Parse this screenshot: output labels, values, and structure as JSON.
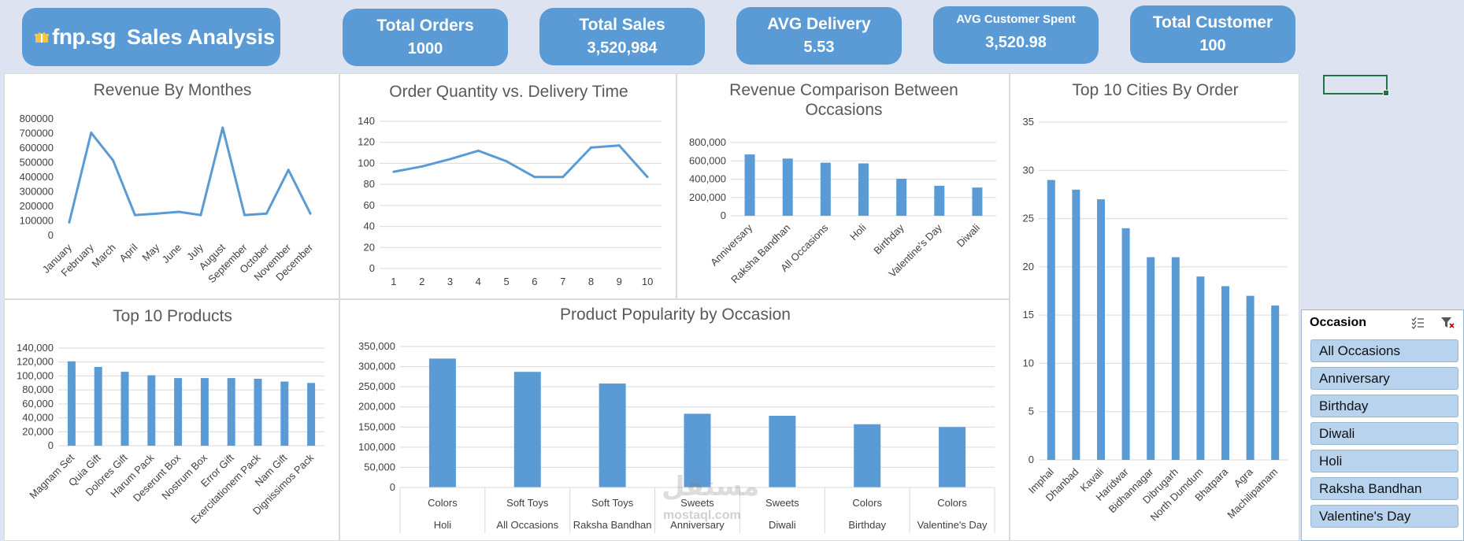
{
  "brand": {
    "logo": "fnp.sg",
    "title": "Sales Analysis"
  },
  "kpis": [
    {
      "label": "Total Orders",
      "value": "1000"
    },
    {
      "label": "Total Sales",
      "value": "3,520,984"
    },
    {
      "label": "AVG Delivery",
      "value": "5.53"
    },
    {
      "label": "AVG Customer Spent",
      "value": "3,520.98"
    },
    {
      "label": "Total Customer",
      "value": "100"
    }
  ],
  "colors": {
    "accent": "#5b9bd5",
    "background": "#dde3f1",
    "slicer_item": "#b8d3ee"
  },
  "slicer": {
    "title": "Occasion",
    "items": [
      "All Occasions",
      "Anniversary",
      "Birthday",
      "Diwali",
      "Holi",
      "Raksha Bandhan",
      "Valentine's Day"
    ]
  },
  "watermark": {
    "arabic": "مستقل",
    "latin": "mostaql.com"
  },
  "chart_data": [
    {
      "id": "revenue_months",
      "type": "line",
      "title": "Revenue By Monthes",
      "categories": [
        "January",
        "February",
        "March",
        "April",
        "May",
        "June",
        "July",
        "August",
        "September",
        "October",
        "November",
        "December"
      ],
      "values": [
        90000,
        705000,
        515000,
        140000,
        150000,
        162000,
        140000,
        740000,
        140000,
        150000,
        450000,
        150000
      ],
      "yticks": [
        "0",
        "100000",
        "200000",
        "300000",
        "400000",
        "500000",
        "600000",
        "700000",
        "800000"
      ],
      "ylim": [
        0,
        800000
      ]
    },
    {
      "id": "qty_delivery",
      "type": "line",
      "title": "Order Quantity vs. Delivery Time",
      "categories": [
        "1",
        "2",
        "3",
        "4",
        "5",
        "6",
        "7",
        "8",
        "9",
        "10"
      ],
      "values": [
        92,
        97,
        104,
        112,
        102,
        87,
        87,
        115,
        117,
        87
      ],
      "yticks": [
        "0",
        "20",
        "40",
        "60",
        "80",
        "100",
        "120",
        "140"
      ],
      "ylim": [
        0,
        140
      ]
    },
    {
      "id": "revenue_occasions",
      "type": "bar",
      "title": "Revenue Comparison Between",
      "title2": "Occasions",
      "categories": [
        "Anniversary",
        "Raksha Bandhan",
        "All Occasions",
        "Holi",
        "Birthday",
        "Valentine's Day",
        "Diwali"
      ],
      "values": [
        670000,
        625000,
        580000,
        572000,
        405000,
        328000,
        308000
      ],
      "yticks": [
        "0",
        "200,000",
        "400,000",
        "600,000",
        "800,000"
      ],
      "ylim": [
        0,
        800000
      ]
    },
    {
      "id": "top_cities",
      "type": "bar",
      "title": "Top 10 Cities By Order",
      "categories": [
        "Imphal",
        "Dhanbad",
        "Kavali",
        "Haridwar",
        "Bidhannagar",
        "Dibrugarh",
        "North Dumdum",
        "Bhatpara",
        "Agra",
        "Machilipatnam"
      ],
      "values": [
        29,
        28,
        27,
        24,
        21,
        21,
        19,
        18,
        17,
        16
      ],
      "yticks": [
        "0",
        "5",
        "10",
        "15",
        "20",
        "25",
        "30",
        "35"
      ],
      "ylim": [
        0,
        35
      ]
    },
    {
      "id": "top_products",
      "type": "bar",
      "title": "Top 10 Products",
      "categories": [
        "Magnam Set",
        "Quia Gift",
        "Dolores Gift",
        "Harum Pack",
        "Deserunt Box",
        "Nostrum Box",
        "Error Gift",
        "Exercitationem Pack",
        "Nam Gift",
        "Dignissimos Pack"
      ],
      "values": [
        121000,
        113000,
        106000,
        101000,
        97000,
        97000,
        97000,
        96000,
        92000,
        90000
      ],
      "yticks": [
        "0",
        "20,000",
        "40,000",
        "60,000",
        "80,000",
        "100,000",
        "120,000",
        "140,000"
      ],
      "ylim": [
        0,
        140000
      ]
    },
    {
      "id": "popularity_occasion",
      "type": "bar",
      "title": "Product Popularity by Occasion",
      "categories": [
        {
          "product": "Colors",
          "occasion": "Holi"
        },
        {
          "product": "Soft Toys",
          "occasion": "All Occasions"
        },
        {
          "product": "Soft Toys",
          "occasion": "Raksha Bandhan"
        },
        {
          "product": "Sweets",
          "occasion": "Anniversary"
        },
        {
          "product": "Sweets",
          "occasion": "Diwali"
        },
        {
          "product": "Colors",
          "occasion": "Birthday"
        },
        {
          "product": "Colors",
          "occasion": "Valentine's Day"
        }
      ],
      "values": [
        320000,
        287000,
        258000,
        183000,
        178000,
        157000,
        150000
      ],
      "yticks": [
        "0",
        "50,000",
        "100,000",
        "150,000",
        "200,000",
        "250,000",
        "300,000",
        "350,000"
      ],
      "ylim": [
        0,
        350000
      ]
    }
  ]
}
